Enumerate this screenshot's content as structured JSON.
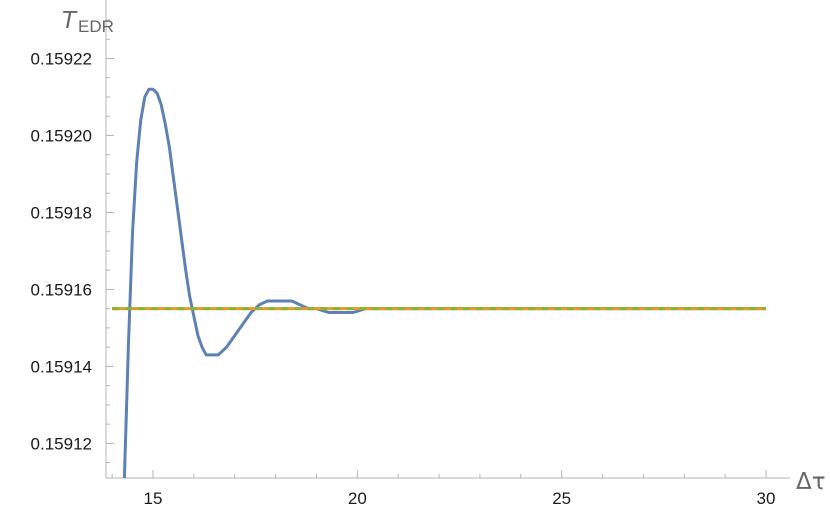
{
  "chart_data": {
    "type": "line",
    "xlabel": "Δτ",
    "ylabel": {
      "main": "T",
      "sub": "EDR"
    },
    "xlim": [
      13.85,
      30.0
    ],
    "ylim": [
      0.159111,
      0.15923
    ],
    "x_axis_at_y": 0.159111,
    "y_axis_at_x": 13.85,
    "xticks": {
      "major": [
        15,
        20,
        25,
        30
      ],
      "labels": [
        "15",
        "20",
        "25",
        "30"
      ],
      "minor_step": 1
    },
    "yticks": {
      "major": [
        0.15912,
        0.15914,
        0.15916,
        0.15918,
        0.1592,
        0.15922
      ],
      "labels": [
        "0.15912",
        "0.15914",
        "0.15916",
        "0.15918",
        "0.15920",
        "0.15922"
      ],
      "minor_step": 5e-06
    },
    "grid": false,
    "legend": "none",
    "colors": {
      "series1": "#5e81b5",
      "series2": "#e19c24",
      "series3": "#8fb032",
      "axis": "#b3b3b3",
      "text": "#1a1a1a"
    },
    "series": [
      {
        "style": "solid",
        "x": [
          14.3,
          14.4,
          14.5,
          14.6,
          14.7,
          14.8,
          14.9,
          15.0,
          15.1,
          15.2,
          15.3,
          15.4,
          15.5,
          15.6,
          15.7,
          15.8,
          15.9,
          16.0,
          16.1,
          16.2,
          16.3,
          16.4,
          16.5,
          16.6,
          16.8,
          17.0,
          17.2,
          17.4,
          17.6,
          17.8,
          18.0,
          18.2,
          18.4,
          18.6,
          18.8,
          19.0,
          19.3,
          19.6,
          19.9,
          20.2,
          20.5,
          20.8,
          21.1,
          21.4,
          21.7,
          22.0,
          22.5,
          23.0,
          24.0,
          25.0,
          26.0,
          27.0,
          28.0,
          29.0,
          30.0
        ],
        "y": [
          0.159111,
          0.159146,
          0.159175,
          0.159193,
          0.159204,
          0.15921,
          0.159212,
          0.159212,
          0.159211,
          0.159208,
          0.159203,
          0.159197,
          0.159189,
          0.159181,
          0.159173,
          0.159165,
          0.159158,
          0.159153,
          0.159148,
          0.159145,
          0.159143,
          0.159143,
          0.159143,
          0.159143,
          0.159145,
          0.159148,
          0.159151,
          0.159154,
          0.159156,
          0.159157,
          0.159157,
          0.159157,
          0.159157,
          0.159156,
          0.159155,
          0.159155,
          0.159154,
          0.159154,
          0.159154,
          0.159155,
          0.159155,
          0.159155,
          0.159155,
          0.159155,
          0.159155,
          0.159155,
          0.159155,
          0.159155,
          0.159155,
          0.159155,
          0.159155,
          0.159155,
          0.159155,
          0.159155,
          0.159155
        ]
      },
      {
        "style": "solid",
        "x": [
          14.0,
          30.0
        ],
        "y": [
          0.159155,
          0.159155
        ]
      },
      {
        "style": "dashed",
        "x": [
          14.0,
          30.0
        ],
        "y": [
          0.159155,
          0.159155
        ]
      }
    ]
  }
}
